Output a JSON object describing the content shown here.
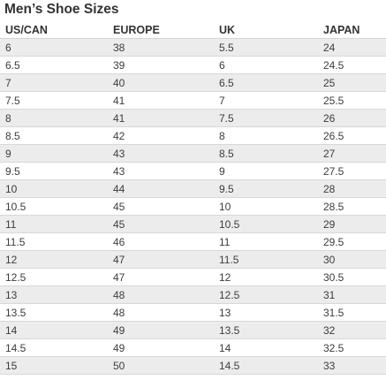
{
  "title": "Men’s Shoe Sizes",
  "columns": [
    "US/CAN",
    "EUROPE",
    "UK",
    "JAPAN"
  ],
  "rows": [
    [
      "6",
      "38",
      "5.5",
      "24"
    ],
    [
      "6.5",
      "39",
      "6",
      "24.5"
    ],
    [
      "7",
      "40",
      "6.5",
      "25"
    ],
    [
      "7.5",
      "41",
      "7",
      "25.5"
    ],
    [
      "8",
      "41",
      "7.5",
      "26"
    ],
    [
      "8.5",
      "42",
      "8",
      "26.5"
    ],
    [
      "9",
      "43",
      "8.5",
      "27"
    ],
    [
      "9.5",
      "43",
      "9",
      "27.5"
    ],
    [
      "10",
      "44",
      "9.5",
      "28"
    ],
    [
      "10.5",
      "45",
      "10",
      "28.5"
    ],
    [
      "11",
      "45",
      "10.5",
      "29"
    ],
    [
      "11.5",
      "46",
      "11",
      "29.5"
    ],
    [
      "12",
      "47",
      "11.5",
      "30"
    ],
    [
      "12.5",
      "47",
      "12",
      "30.5"
    ],
    [
      "13",
      "48",
      "12.5",
      "31"
    ],
    [
      "13.5",
      "48",
      "13",
      "31.5"
    ],
    [
      "14",
      "49",
      "13.5",
      "32"
    ],
    [
      "14.5",
      "49",
      "14",
      "32.5"
    ],
    [
      "15",
      "50",
      "14.5",
      "33"
    ]
  ]
}
